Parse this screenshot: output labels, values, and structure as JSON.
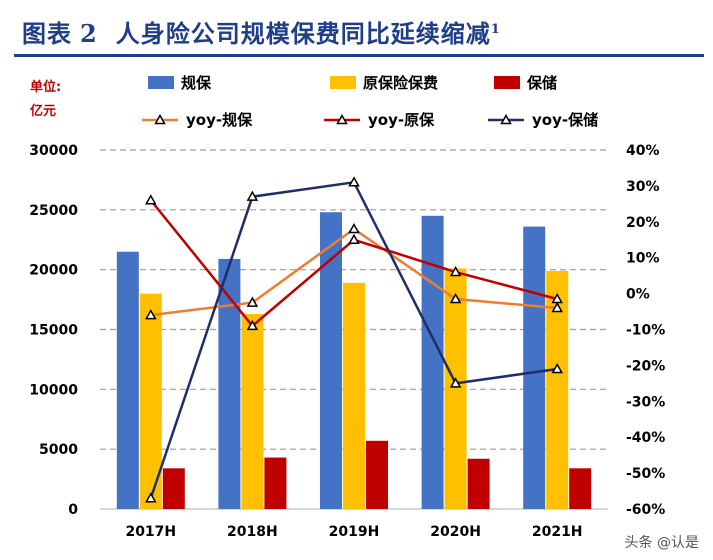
{
  "header": {
    "fig_label": "图表",
    "fig_number": "2",
    "title": "人身险公司规模保费同比延续缩减",
    "footnote": "1"
  },
  "unit": {
    "line1": "单位:",
    "line2": "亿元"
  },
  "watermark": "头条 @认是",
  "colors": {
    "title": "#1f3e8a",
    "guimo": "#4472c4",
    "yuanbao": "#ffc000",
    "baochu": "#c00000",
    "yoy_guimo": "#ed7d31",
    "yoy_yuanbao": "#c00000",
    "yoy_baochu": "#1f2d6b",
    "grid": "#9e9e9e"
  },
  "chart_data": {
    "type": "bar+line",
    "categories": [
      "2017H",
      "2018H",
      "2019H",
      "2020H",
      "2021H"
    ],
    "y_left": {
      "min": 0,
      "max": 30000,
      "step": 5000,
      "ticks": [
        "0",
        "5000",
        "10000",
        "15000",
        "20000",
        "25000",
        "30000"
      ]
    },
    "y_right": {
      "min": -60,
      "max": 40,
      "step": 10,
      "ticks": [
        "-60%",
        "-50%",
        "-40%",
        "-30%",
        "-20%",
        "-10%",
        "0%",
        "10%",
        "20%",
        "30%",
        "40%"
      ]
    },
    "grid": "dashed-horizontal",
    "bars": [
      {
        "name": "规保",
        "values": [
          21500,
          20900,
          24800,
          24500,
          23600
        ]
      },
      {
        "name": "原保险保费",
        "values": [
          18000,
          16300,
          18900,
          20100,
          19900
        ]
      },
      {
        "name": "保储",
        "values": [
          3400,
          4300,
          5700,
          4200,
          3400
        ]
      }
    ],
    "lines": [
      {
        "name": "yoy-规保",
        "axis": "right",
        "values": [
          -6,
          -2.5,
          18,
          -1.5,
          -4
        ]
      },
      {
        "name": "yoy-原保",
        "axis": "right",
        "values": [
          26,
          -9,
          15,
          6,
          -1.5
        ]
      },
      {
        "name": "yoy-保储",
        "axis": "right",
        "values": [
          -57,
          27,
          31,
          -25,
          -21
        ]
      }
    ],
    "legend_placement": "top"
  }
}
